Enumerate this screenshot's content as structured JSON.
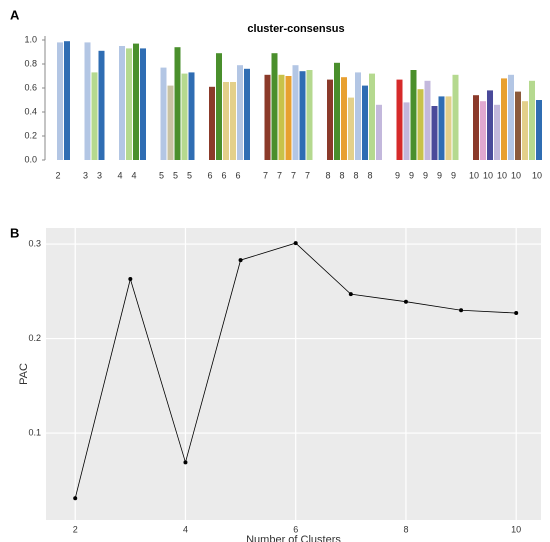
{
  "chart_data": [
    {
      "type": "bar",
      "panel": "A",
      "title": "cluster-consensus",
      "ylim": [
        0,
        1.0
      ],
      "yticks": [
        {
          "value": 0,
          "label": "0.0"
        },
        {
          "value": 0.2,
          "label": "0.2"
        },
        {
          "value": 0.4,
          "label": "0.4"
        },
        {
          "value": 0.6,
          "label": "0.6"
        },
        {
          "value": 0.8,
          "label": "0.8"
        },
        {
          "value": 1.0,
          "label": "1.0"
        }
      ],
      "groups": [
        {
          "labels": [
            "2",
            null
          ],
          "values": [
            0.98,
            0.99
          ],
          "colors": [
            "#b3c6e4",
            "#2f6db3"
          ]
        },
        {
          "labels": [
            "3",
            null,
            "3"
          ],
          "values": [
            0.98,
            0.73,
            0.91
          ],
          "colors": [
            "#b3c6e4",
            "#b5d98f",
            "#2f6db3"
          ]
        },
        {
          "labels": [
            "4",
            null,
            "4",
            null
          ],
          "values": [
            0.95,
            0.93,
            0.97,
            0.93
          ],
          "colors": [
            "#b3c6e4",
            "#b5d98f",
            "#4a8f2c",
            "#2f6db3"
          ]
        },
        {
          "labels": [
            "5",
            null,
            "5",
            null,
            "5"
          ],
          "values": [
            0.77,
            0.62,
            0.94,
            0.72,
            0.73
          ],
          "colors": [
            "#b3c6e4",
            "#c9c3a3",
            "#4a8f2c",
            "#b5d98f",
            "#2f6db3"
          ]
        },
        {
          "labels": [
            "6",
            null,
            "6",
            null,
            "6",
            null
          ],
          "values": [
            0.61,
            0.89,
            0.65,
            0.65,
            0.79,
            0.76
          ],
          "colors": [
            "#8b3a2a",
            "#4a8f2c",
            "#e3d08a",
            "#e3d08a",
            "#b3c6e4",
            "#2f6db3"
          ]
        },
        {
          "labels": [
            "7",
            null,
            "7",
            null,
            "7",
            null,
            "7"
          ],
          "values": [
            0.71,
            0.89,
            0.71,
            0.7,
            0.79,
            0.74,
            0.75
          ],
          "colors": [
            "#8b3a2a",
            "#4a8f2c",
            "#c8c24a",
            "#e8a030",
            "#b3c6e4",
            "#2f6db3",
            "#b5d98f"
          ]
        },
        {
          "labels": [
            "8",
            null,
            "8",
            null,
            "8",
            null,
            "8",
            null
          ],
          "values": [
            0.67,
            0.81,
            0.69,
            0.52,
            0.73,
            0.62,
            0.72,
            0.46
          ],
          "colors": [
            "#8b3a2a",
            "#4a8f2c",
            "#e8a030",
            "#e3d08a",
            "#b3c6e4",
            "#2f6db3",
            "#b5d98f",
            "#c3b8dc"
          ]
        },
        {
          "labels": [
            "9",
            null,
            "9",
            null,
            "9",
            null,
            "9",
            null,
            "9"
          ],
          "values": [
            0.67,
            0.48,
            0.75,
            0.59,
            0.66,
            0.45,
            0.53,
            0.53,
            0.71
          ],
          "colors": [
            "#d62a2a",
            "#c3b8dc",
            "#4a8f2c",
            "#c8c24a",
            "#c3b8dc",
            "#4a4a9a",
            "#2f6db3",
            "#e3d08a",
            "#b5d98f"
          ]
        },
        {
          "labels": [
            "10",
            null,
            "10",
            null,
            "10",
            null,
            "10",
            null,
            null,
            "10"
          ],
          "values": [
            0.54,
            0.49,
            0.58,
            0.46,
            0.68,
            0.71,
            0.57,
            0.49,
            0.66,
            0.5
          ],
          "colors": [
            "#8b3a2a",
            "#e0a8d0",
            "#4a4a9a",
            "#c3b8dc",
            "#e8a030",
            "#b3c6e4",
            "#8b5a3a",
            "#e3d08a",
            "#b5d98f",
            "#2f6db3"
          ]
        }
      ]
    },
    {
      "type": "line",
      "panel": "B",
      "xlabel": "Number of Clusters",
      "ylabel": "PAC",
      "x": [
        2,
        3,
        4,
        5,
        6,
        7,
        8,
        9,
        10
      ],
      "values": [
        0.031,
        0.263,
        0.069,
        0.283,
        0.301,
        0.247,
        0.239,
        0.23,
        0.227
      ],
      "color": "#000000",
      "xlim": [
        1.47,
        10.45
      ],
      "ylim": [
        0.008,
        0.317
      ],
      "xticks": [
        2,
        4,
        6,
        8,
        10
      ],
      "yticks": [
        0.1,
        0.2,
        0.3
      ],
      "grid": true
    }
  ]
}
